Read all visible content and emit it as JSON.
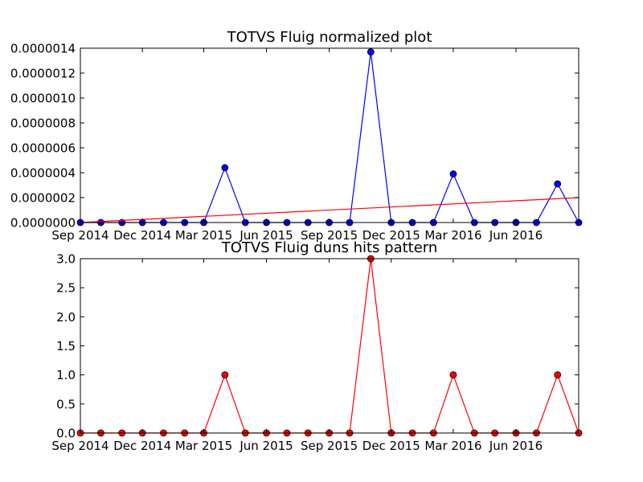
{
  "chart_data": [
    {
      "type": "line",
      "title": "TOTVS Fluig normalized plot",
      "xlabel": "",
      "ylabel": "",
      "x_tick_labels": [
        "Sep 2014",
        "Dec 2014",
        "Mar 2015",
        "Jun 2015",
        "Sep 2015",
        "Dec 2015",
        "Mar 2016",
        "Jun 2016"
      ],
      "y_tick_labels": [
        "0.0000000",
        "0.0000002",
        "0.0000004",
        "0.0000006",
        "0.0000008",
        "0.0000010",
        "0.0000012",
        "0.0000014"
      ],
      "ylim": [
        0,
        1.4e-06
      ],
      "xlim": [
        "2014-09-01",
        "2016-09-01"
      ],
      "x": [
        "2014-09-01",
        "2014-10-01",
        "2014-11-01",
        "2014-12-01",
        "2015-01-01",
        "2015-02-01",
        "2015-03-01",
        "2015-04-01",
        "2015-05-01",
        "2015-06-01",
        "2015-07-01",
        "2015-08-01",
        "2015-09-01",
        "2015-10-01",
        "2015-11-01",
        "2015-12-01",
        "2016-01-01",
        "2016-02-01",
        "2016-03-01",
        "2016-04-01",
        "2016-05-01",
        "2016-06-01",
        "2016-07-01",
        "2016-08-01",
        "2016-09-01"
      ],
      "series": [
        {
          "color": "#0000ff",
          "marker": "circle",
          "values": [
            0,
            0,
            0,
            0,
            0,
            0,
            0,
            4.4e-07,
            0,
            0,
            0,
            0,
            0,
            0,
            1.37e-06,
            0,
            0,
            0,
            3.9e-07,
            0,
            0,
            0,
            0,
            3.1e-07,
            0
          ]
        },
        {
          "color": "#ff0000",
          "marker": "none",
          "kind": "trend",
          "x": [
            "2014-09-01",
            "2016-09-01"
          ],
          "values": [
            0.0,
            2e-07
          ]
        }
      ],
      "grid": false
    },
    {
      "type": "line",
      "title": "TOTVS Fluig duns hits pattern",
      "xlabel": "",
      "ylabel": "",
      "x_tick_labels": [
        "Sep 2014",
        "Dec 2014",
        "Mar 2015",
        "Jun 2015",
        "Sep 2015",
        "Dec 2015",
        "Mar 2016",
        "Jun 2016"
      ],
      "y_tick_labels": [
        "0.0",
        "0.5",
        "1.0",
        "1.5",
        "2.0",
        "2.5",
        "3.0"
      ],
      "ylim": [
        0,
        3
      ],
      "xlim": [
        "2014-09-01",
        "2016-09-01"
      ],
      "x": [
        "2014-09-01",
        "2014-10-01",
        "2014-11-01",
        "2014-12-01",
        "2015-01-01",
        "2015-02-01",
        "2015-03-01",
        "2015-04-01",
        "2015-05-01",
        "2015-06-01",
        "2015-07-01",
        "2015-08-01",
        "2015-09-01",
        "2015-10-01",
        "2015-11-01",
        "2015-12-01",
        "2016-01-01",
        "2016-02-01",
        "2016-03-01",
        "2016-04-01",
        "2016-05-01",
        "2016-06-01",
        "2016-07-01",
        "2016-08-01",
        "2016-09-01"
      ],
      "series": [
        {
          "color": "#ff0000",
          "marker": "circle",
          "values": [
            0,
            0,
            0,
            0,
            0,
            0,
            0,
            1,
            0,
            0,
            0,
            0,
            0,
            0,
            3,
            0,
            0,
            0,
            1,
            0,
            0,
            0,
            0,
            1,
            0
          ]
        }
      ],
      "grid": false
    }
  ]
}
